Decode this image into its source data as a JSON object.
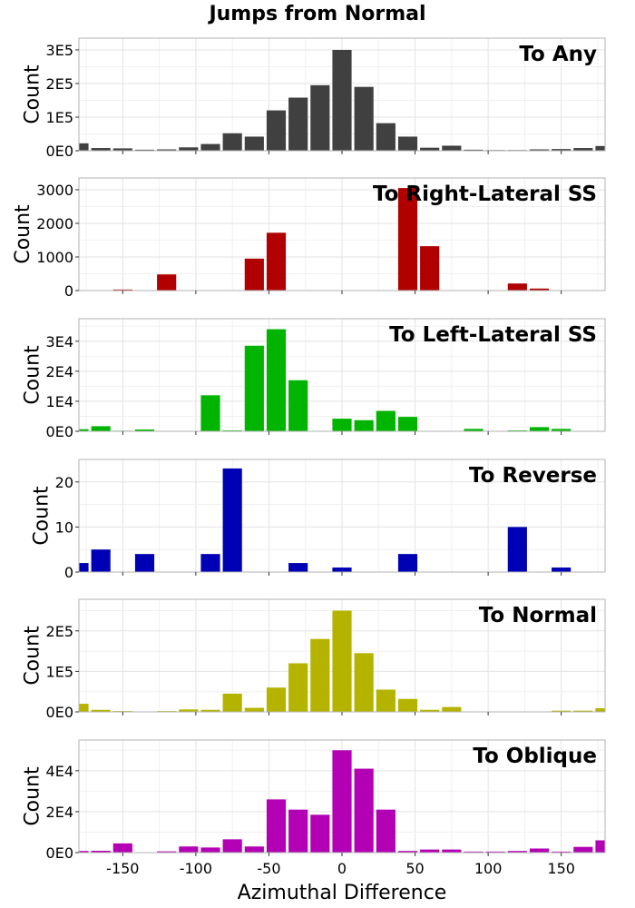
{
  "chart_data": {
    "title": "Jumps from Normal",
    "xlabel": "Azimuthal Difference",
    "ylabel": "Count",
    "x_ticks": [
      "-150",
      "-100",
      "-50",
      "0",
      "50",
      "100",
      "150"
    ],
    "x_tick_values": [
      -150,
      -100,
      -50,
      0,
      50,
      100,
      150
    ],
    "xlim": [
      -180,
      180
    ],
    "bin_width": 15,
    "grid": true,
    "panels": [
      {
        "type": "bar",
        "label": "To Any",
        "color": "#404040",
        "ylim": [
          0,
          335000
        ],
        "yticks": [
          0,
          100000,
          200000,
          300000
        ],
        "ytick_labels": [
          "0E0",
          "1E5",
          "2E5",
          "3E5"
        ],
        "bin_centers": [
          -180,
          -165,
          -150,
          -135,
          -120,
          -105,
          -90,
          -75,
          -60,
          -45,
          -30,
          -15,
          0,
          15,
          30,
          45,
          60,
          75,
          90,
          105,
          120,
          135,
          150,
          165,
          180
        ],
        "values": [
          22000,
          8000,
          7000,
          3000,
          4000,
          10000,
          20000,
          52000,
          42000,
          120000,
          158000,
          195000,
          300000,
          190000,
          82000,
          42000,
          9000,
          15000,
          3000,
          2000,
          2000,
          4000,
          5000,
          8000,
          14000
        ]
      },
      {
        "type": "bar",
        "label": "To Right-Lateral SS",
        "color": "#b00000",
        "ylim": [
          0,
          3350
        ],
        "yticks": [
          0,
          1000,
          2000,
          3000
        ],
        "ytick_labels": [
          "0",
          "1000",
          "2000",
          "3000"
        ],
        "bin_centers": [
          -180,
          -165,
          -150,
          -135,
          -120,
          -105,
          -90,
          -75,
          -60,
          -45,
          -30,
          -15,
          0,
          15,
          30,
          45,
          60,
          75,
          90,
          105,
          120,
          135,
          150,
          165,
          180
        ],
        "values": [
          0,
          0,
          30,
          0,
          480,
          0,
          0,
          0,
          950,
          1720,
          0,
          0,
          0,
          0,
          0,
          3050,
          1320,
          0,
          0,
          0,
          210,
          60,
          0,
          0,
          0
        ]
      },
      {
        "type": "bar",
        "label": "To Left-Lateral SS",
        "color": "#00b400",
        "ylim": [
          0,
          37500
        ],
        "yticks": [
          0,
          10000,
          20000,
          30000
        ],
        "ytick_labels": [
          "0E0",
          "1E4",
          "2E4",
          "3E4"
        ],
        "bin_centers": [
          -180,
          -165,
          -150,
          -135,
          -120,
          -105,
          -90,
          -75,
          -60,
          -45,
          -30,
          -15,
          0,
          15,
          30,
          45,
          60,
          75,
          90,
          105,
          120,
          135,
          150,
          165,
          180
        ],
        "values": [
          700,
          1700,
          200,
          600,
          0,
          0,
          12000,
          300,
          28500,
          34000,
          17000,
          0,
          4200,
          3700,
          6800,
          4800,
          0,
          0,
          800,
          0,
          300,
          1400,
          800,
          0,
          0
        ]
      },
      {
        "type": "bar",
        "label": "To Reverse",
        "color": "#0000b4",
        "ylim": [
          0,
          25
        ],
        "yticks": [
          0,
          10,
          20
        ],
        "ytick_labels": [
          "0",
          "10",
          "20"
        ],
        "bin_centers": [
          -180,
          -165,
          -150,
          -135,
          -120,
          -105,
          -90,
          -75,
          -60,
          -45,
          -30,
          -15,
          0,
          15,
          30,
          45,
          60,
          75,
          90,
          105,
          120,
          135,
          150,
          165,
          180
        ],
        "values": [
          2,
          5,
          0,
          4,
          0,
          0,
          4,
          23,
          0,
          0,
          2,
          0,
          1,
          0,
          0,
          4,
          0,
          0,
          0,
          0,
          10,
          0,
          1,
          0,
          0
        ]
      },
      {
        "type": "bar",
        "label": "To Normal",
        "color": "#b4b400",
        "ylim": [
          0,
          278000
        ],
        "yticks": [
          0,
          100000,
          200000
        ],
        "ytick_labels": [
          "0E0",
          "1E5",
          "2E5"
        ],
        "bin_centers": [
          -180,
          -165,
          -150,
          -135,
          -120,
          -105,
          -90,
          -75,
          -60,
          -45,
          -30,
          -15,
          0,
          15,
          30,
          45,
          60,
          75,
          90,
          105,
          120,
          135,
          150,
          165,
          180
        ],
        "values": [
          20000,
          5000,
          2000,
          1000,
          2000,
          6000,
          5000,
          45000,
          10000,
          60000,
          120000,
          180000,
          250000,
          145000,
          55000,
          32000,
          5000,
          12000,
          500,
          500,
          500,
          500,
          3000,
          3000,
          9000
        ]
      },
      {
        "type": "bar",
        "label": "To Oblique",
        "color": "#b400b4",
        "ylim": [
          0,
          55000
        ],
        "yticks": [
          0,
          20000,
          40000
        ],
        "ytick_labels": [
          "0E0",
          "2E4",
          "4E4"
        ],
        "bin_centers": [
          -180,
          -165,
          -150,
          -135,
          -120,
          -105,
          -90,
          -75,
          -60,
          -45,
          -30,
          -15,
          0,
          15,
          30,
          45,
          60,
          75,
          90,
          105,
          120,
          135,
          150,
          165,
          180
        ],
        "values": [
          800,
          900,
          4500,
          200,
          600,
          3000,
          2500,
          6500,
          3000,
          26000,
          21000,
          18500,
          50000,
          41000,
          21000,
          800,
          1500,
          1500,
          500,
          500,
          800,
          2000,
          500,
          2800,
          6000
        ]
      }
    ]
  }
}
